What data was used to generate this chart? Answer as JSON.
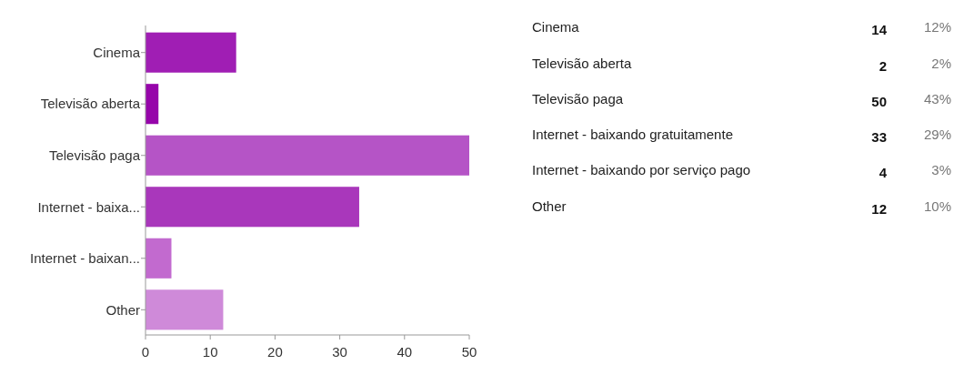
{
  "chart_data": [
    {
      "type": "bar",
      "orientation": "horizontal",
      "categories": [
        "Cinema",
        "Televisão aberta",
        "Televisão paga",
        "Internet  - baixa...",
        "Internet - baixan...",
        "Other"
      ],
      "values": [
        14,
        2,
        50,
        33,
        4,
        12
      ],
      "colors": [
        "#a01eb4",
        "#9605aa",
        "#b554c6",
        "#a937bb",
        "#c26acf",
        "#cf8ad9"
      ],
      "xlim": [
        0,
        50
      ],
      "xticks": [
        0,
        10,
        20,
        30,
        40,
        50
      ],
      "grid": false
    },
    {
      "type": "other",
      "categories": [
        "Cinema",
        "Televisão aberta",
        "Televisão paga",
        "Internet - baixando gratuitamente",
        "Internet - baixando por serviço pago",
        "Other"
      ],
      "values": [
        12,
        2,
        43,
        29,
        3,
        10
      ],
      "value_labels": [
        "12%",
        "2%",
        "43%",
        "29%",
        "3%",
        "10%"
      ],
      "annotations": [
        "14",
        "2",
        "50",
        "33",
        "4",
        "12"
      ]
    }
  ]
}
